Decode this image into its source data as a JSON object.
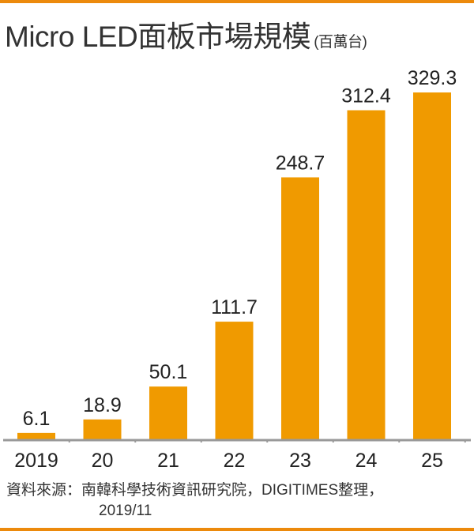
{
  "chart_data": {
    "type": "bar",
    "title": "Micro LED面板市場規模",
    "unit": "(百萬台)",
    "categories": [
      "2019",
      "20",
      "21",
      "22",
      "23",
      "24",
      "25"
    ],
    "values": [
      6.1,
      18.9,
      50.1,
      111.7,
      248.7,
      312.4,
      329.3
    ],
    "data_labels": [
      "6.1",
      "18.9",
      "50.1",
      "111.7",
      "248.7",
      "312.4",
      "329.3"
    ],
    "ylim": [
      0,
      329.3
    ],
    "grid": false,
    "bar_color": "#f09a00",
    "axis_color": "#999999",
    "source": "資料來源：南韓科學技術資訊研究院，DIGITIMES整理，",
    "source_date": "2019/11"
  }
}
